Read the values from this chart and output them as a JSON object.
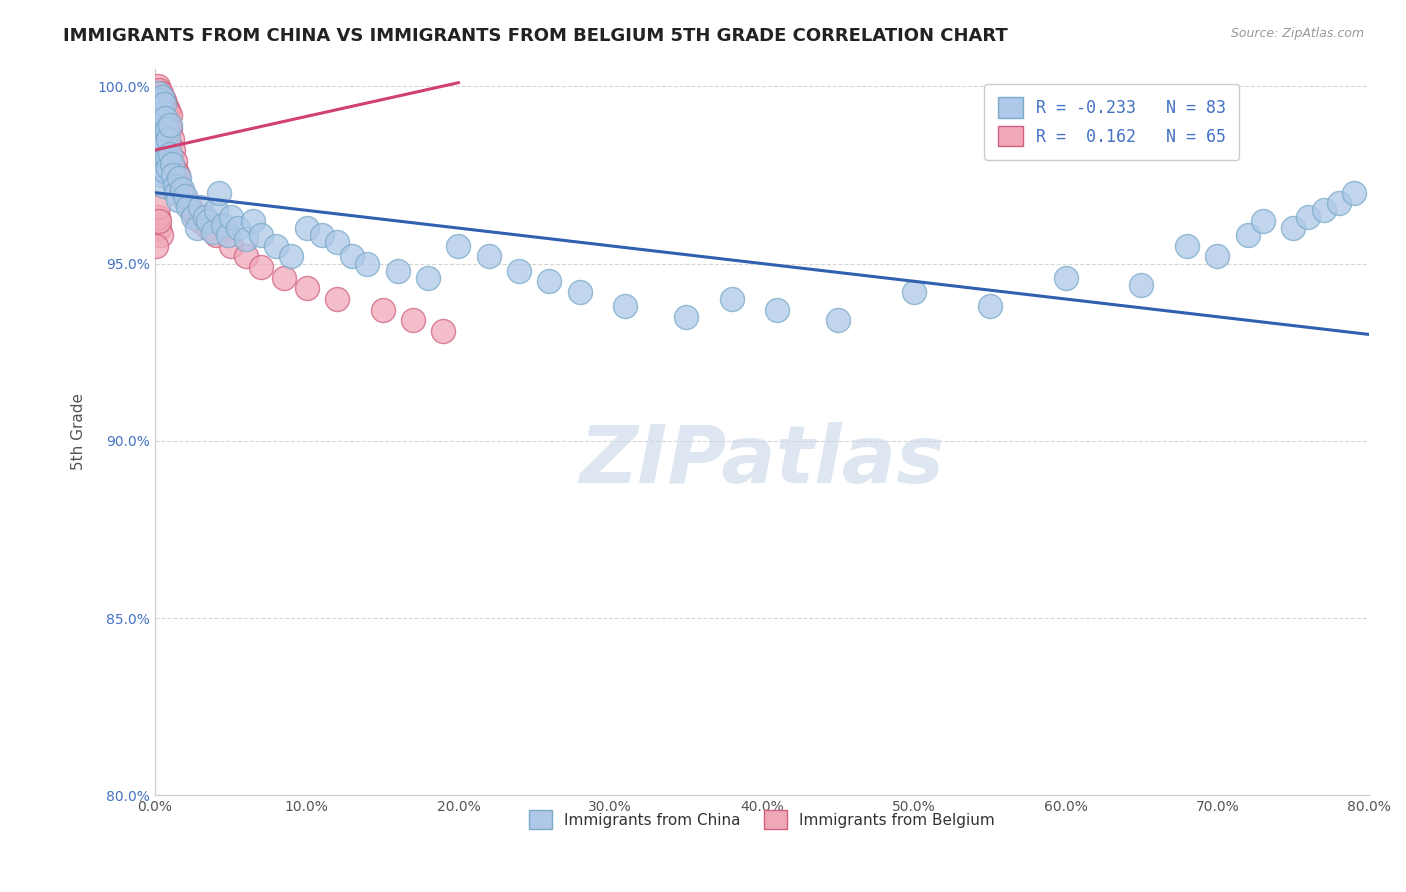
{
  "title": "IMMIGRANTS FROM CHINA VS IMMIGRANTS FROM BELGIUM 5TH GRADE CORRELATION CHART",
  "source": "Source: ZipAtlas.com",
  "ylabel": "5th Grade",
  "xlim": [
    0.0,
    0.8
  ],
  "ylim": [
    0.8,
    1.005
  ],
  "xticks": [
    0.0,
    0.1,
    0.2,
    0.3,
    0.4,
    0.5,
    0.6,
    0.7,
    0.8
  ],
  "xticklabels": [
    "0.0%",
    "10.0%",
    "20.0%",
    "30.0%",
    "40.0%",
    "50.0%",
    "60.0%",
    "70.0%",
    "80.0%"
  ],
  "yticks": [
    0.8,
    0.85,
    0.9,
    0.95,
    1.0
  ],
  "yticklabels": [
    "80.0%",
    "85.0%",
    "90.0%",
    "95.0%",
    "100.0%"
  ],
  "china_color": "#adc8e8",
  "china_edge_color": "#7aaac8",
  "belgium_color": "#f0a8b8",
  "belgium_edge_color": "#d06080",
  "china_line_color": "#3060b0",
  "belgium_line_color": "#d04070",
  "watermark": "ZIPatlas",
  "watermark_color": "#c8d8e8",
  "china_R": -0.233,
  "china_N": 83,
  "belgium_R": 0.162,
  "belgium_N": 65,
  "china_line_x0": 0.0,
  "china_line_y0": 0.97,
  "china_line_x1": 0.8,
  "china_line_y1": 0.93,
  "belgium_line_x0": 0.0,
  "belgium_line_y0": 0.982,
  "belgium_line_x1": 0.2,
  "belgium_line_y1": 1.001,
  "china_scatter_x": [
    0.001,
    0.002,
    0.002,
    0.002,
    0.003,
    0.003,
    0.003,
    0.004,
    0.004,
    0.004,
    0.005,
    0.005,
    0.005,
    0.005,
    0.006,
    0.006,
    0.006,
    0.006,
    0.007,
    0.007,
    0.007,
    0.008,
    0.008,
    0.009,
    0.009,
    0.01,
    0.01,
    0.011,
    0.012,
    0.013,
    0.014,
    0.015,
    0.016,
    0.018,
    0.02,
    0.022,
    0.025,
    0.028,
    0.03,
    0.033,
    0.035,
    0.038,
    0.04,
    0.042,
    0.045,
    0.048,
    0.05,
    0.055,
    0.06,
    0.065,
    0.07,
    0.08,
    0.09,
    0.1,
    0.11,
    0.12,
    0.13,
    0.14,
    0.16,
    0.18,
    0.2,
    0.22,
    0.24,
    0.26,
    0.28,
    0.31,
    0.35,
    0.38,
    0.41,
    0.45,
    0.5,
    0.55,
    0.6,
    0.65,
    0.7,
    0.72,
    0.75,
    0.76,
    0.77,
    0.78,
    0.79,
    0.68,
    0.73
  ],
  "china_scatter_y": [
    0.99,
    0.998,
    0.993,
    0.987,
    0.996,
    0.988,
    0.982,
    0.994,
    0.985,
    0.978,
    0.997,
    0.99,
    0.983,
    0.975,
    0.995,
    0.988,
    0.98,
    0.972,
    0.991,
    0.984,
    0.976,
    0.988,
    0.98,
    0.985,
    0.977,
    0.989,
    0.981,
    0.978,
    0.975,
    0.972,
    0.97,
    0.968,
    0.974,
    0.971,
    0.969,
    0.966,
    0.963,
    0.96,
    0.966,
    0.963,
    0.962,
    0.959,
    0.965,
    0.97,
    0.961,
    0.958,
    0.963,
    0.96,
    0.957,
    0.962,
    0.958,
    0.955,
    0.952,
    0.96,
    0.958,
    0.956,
    0.952,
    0.95,
    0.948,
    0.946,
    0.955,
    0.952,
    0.948,
    0.945,
    0.942,
    0.938,
    0.935,
    0.94,
    0.937,
    0.934,
    0.942,
    0.938,
    0.946,
    0.944,
    0.952,
    0.958,
    0.96,
    0.963,
    0.965,
    0.967,
    0.97,
    0.955,
    0.962
  ],
  "belgium_scatter_x": [
    0.001,
    0.001,
    0.001,
    0.001,
    0.001,
    0.002,
    0.002,
    0.002,
    0.002,
    0.002,
    0.002,
    0.003,
    0.003,
    0.003,
    0.003,
    0.003,
    0.004,
    0.004,
    0.004,
    0.004,
    0.005,
    0.005,
    0.005,
    0.005,
    0.006,
    0.006,
    0.006,
    0.007,
    0.007,
    0.007,
    0.008,
    0.008,
    0.008,
    0.009,
    0.009,
    0.01,
    0.01,
    0.011,
    0.012,
    0.013,
    0.014,
    0.015,
    0.016,
    0.018,
    0.02,
    0.023,
    0.026,
    0.03,
    0.035,
    0.04,
    0.05,
    0.06,
    0.07,
    0.085,
    0.1,
    0.12,
    0.15,
    0.17,
    0.19,
    0.003,
    0.004,
    0.002,
    0.002,
    0.003,
    0.001
  ],
  "belgium_scatter_y": [
    0.998,
    0.995,
    0.993,
    0.99,
    0.986,
    1.0,
    0.997,
    0.994,
    0.991,
    0.988,
    0.985,
    0.999,
    0.996,
    0.993,
    0.99,
    0.987,
    0.998,
    0.995,
    0.992,
    0.988,
    0.997,
    0.994,
    0.991,
    0.987,
    0.996,
    0.993,
    0.989,
    0.995,
    0.992,
    0.988,
    0.994,
    0.991,
    0.987,
    0.993,
    0.989,
    0.992,
    0.988,
    0.985,
    0.982,
    0.979,
    0.976,
    0.975,
    0.972,
    0.97,
    0.968,
    0.966,
    0.964,
    0.962,
    0.96,
    0.958,
    0.955,
    0.952,
    0.949,
    0.946,
    0.943,
    0.94,
    0.937,
    0.934,
    0.931,
    0.96,
    0.958,
    0.963,
    0.966,
    0.962,
    0.955
  ]
}
